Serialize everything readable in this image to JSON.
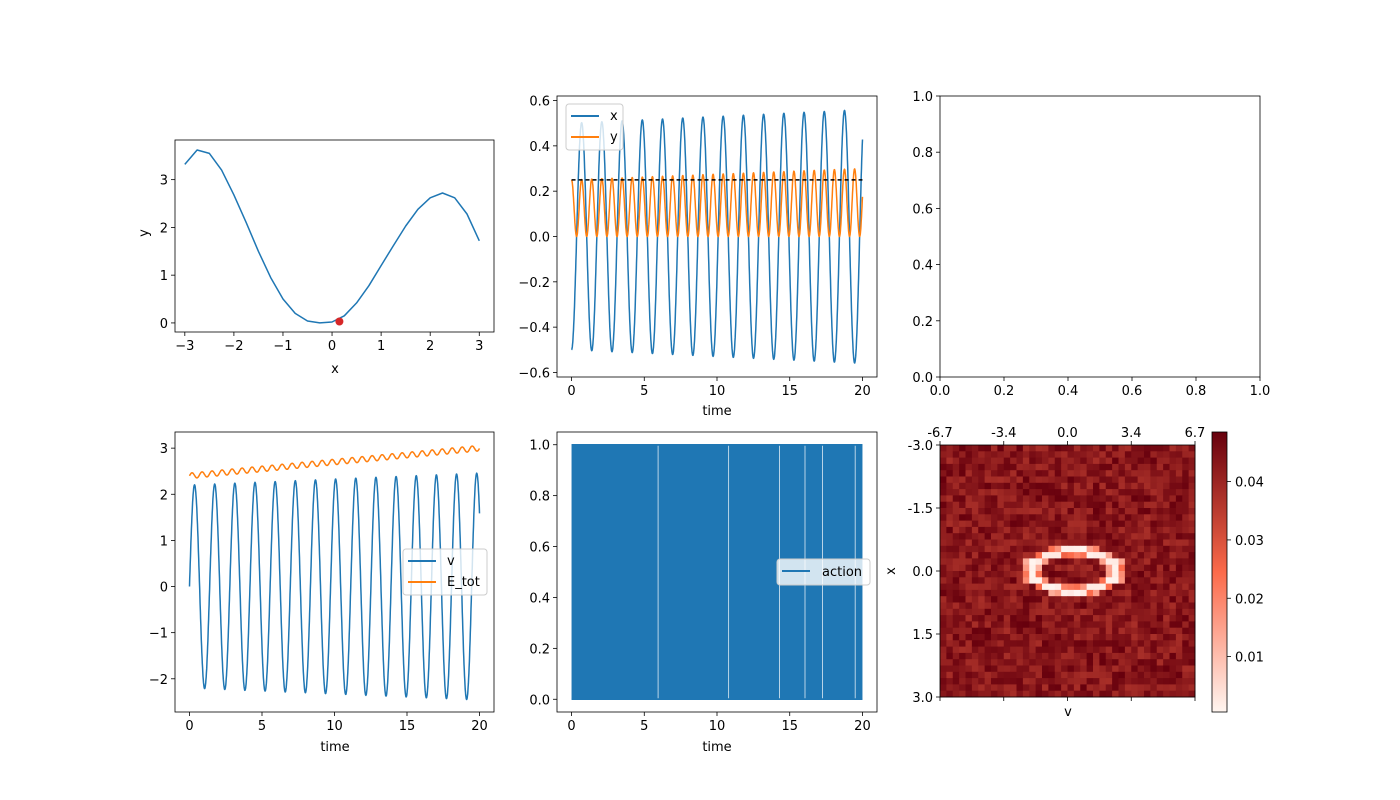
{
  "colors": {
    "c0": "#1f77b4",
    "c1": "#ff7f0e",
    "marker": "#d62728",
    "hline": "#000000",
    "cmap_low": "#fff5f0",
    "cmap_mid": "#fb6a4a",
    "cmap_high": "#67000d"
  },
  "chart_data": [
    {
      "id": "potential",
      "type": "line",
      "xlabel": "x",
      "ylabel": "y",
      "xlim": [
        -3.2,
        3.3
      ],
      "ylim": [
        -0.19,
        3.83
      ],
      "xticks": [
        -3,
        -2,
        -1,
        0,
        1,
        2,
        3
      ],
      "xtick_labels": [
        "−3",
        "−2",
        "−1",
        "0",
        "1",
        "2",
        "3"
      ],
      "yticks": [
        0,
        1,
        2,
        3
      ],
      "ytick_labels": [
        "0",
        "1",
        "2",
        "3"
      ],
      "series": [
        {
          "x": [
            -3.0,
            -2.75,
            -2.5,
            -2.25,
            -2.0,
            -1.75,
            -1.5,
            -1.25,
            -1.0,
            -0.75,
            -0.5,
            -0.25,
            0.0,
            0.25,
            0.5,
            0.75,
            1.0,
            1.25,
            1.5,
            1.75,
            2.0,
            2.25,
            2.5,
            2.75,
            3.0
          ],
          "y": [
            3.32,
            3.62,
            3.55,
            3.2,
            2.68,
            2.1,
            1.5,
            0.95,
            0.5,
            0.2,
            0.04,
            0.0,
            0.02,
            0.15,
            0.42,
            0.78,
            1.2,
            1.62,
            2.03,
            2.38,
            2.62,
            2.72,
            2.62,
            2.28,
            1.72
          ],
          "color_key": "c0"
        }
      ],
      "markers": [
        {
          "x": 0.15,
          "y": 0.03,
          "color_key": "marker"
        }
      ]
    },
    {
      "id": "xy_time",
      "type": "line",
      "xlabel": "time",
      "xlim": [
        -1.0,
        21.0
      ],
      "ylim": [
        -0.62,
        0.62
      ],
      "xticks": [
        0,
        5,
        10,
        15,
        20
      ],
      "xtick_labels": [
        "0",
        "5",
        "10",
        "15",
        "20"
      ],
      "yticks": [
        -0.6,
        -0.4,
        -0.2,
        0.0,
        0.2,
        0.4,
        0.6
      ],
      "ytick_labels": [
        "−0.6",
        "−0.4",
        "−0.2",
        "0.0",
        "0.2",
        "0.4",
        "0.6"
      ],
      "hline": 0.25,
      "legend": {
        "position": "upper-left"
      },
      "series": [
        {
          "name": "x",
          "kind": "cos",
          "amp0": 0.5,
          "amp1": 0.56,
          "period": 1.39,
          "t0": 0,
          "t1": 20,
          "color_key": "c0"
        },
        {
          "name": "y",
          "kind": "sq",
          "amp0": 0.25,
          "amp1": 0.3,
          "period": 1.39,
          "t0": 0,
          "t1": 20,
          "color_key": "c1"
        }
      ]
    },
    {
      "id": "empty",
      "type": "line",
      "xlim": [
        0,
        1
      ],
      "ylim": [
        0,
        1
      ],
      "xticks": [
        0,
        0.2,
        0.4,
        0.6,
        0.8,
        1.0
      ],
      "xtick_labels": [
        "0.0",
        "0.2",
        "0.4",
        "0.6",
        "0.8",
        "1.0"
      ],
      "yticks": [
        0,
        0.2,
        0.4,
        0.6,
        0.8,
        1.0
      ],
      "ytick_labels": [
        "0.0",
        "0.2",
        "0.4",
        "0.6",
        "0.8",
        "1.0"
      ],
      "series": []
    },
    {
      "id": "v_energy",
      "type": "line",
      "xlabel": "time",
      "xlim": [
        -1.0,
        21.0
      ],
      "ylim": [
        -2.72,
        3.35
      ],
      "xticks": [
        0,
        5,
        10,
        15,
        20
      ],
      "xtick_labels": [
        "0",
        "5",
        "10",
        "15",
        "20"
      ],
      "yticks": [
        -2,
        -1,
        0,
        1,
        2,
        3
      ],
      "ytick_labels": [
        "−2",
        "−1",
        "0",
        "1",
        "2",
        "3"
      ],
      "legend": {
        "position": "center-right"
      },
      "series": [
        {
          "name": "v",
          "kind": "sin",
          "amp0": 2.2,
          "amp1": 2.46,
          "period": 1.39,
          "t0": 0,
          "t1": 20,
          "color_key": "c0"
        },
        {
          "name": "E_tot",
          "kind": "energy",
          "base0": 2.4,
          "base1": 3.0,
          "ripple": 0.06,
          "period": 0.69,
          "t0": 0,
          "t1": 20,
          "color_key": "c1"
        }
      ]
    },
    {
      "id": "action",
      "type": "area",
      "xlabel": "time",
      "xlim": [
        -1.0,
        21.0
      ],
      "ylim": [
        -0.05,
        1.05
      ],
      "xticks": [
        0,
        5,
        10,
        15,
        20
      ],
      "xtick_labels": [
        "0",
        "5",
        "10",
        "15",
        "20"
      ],
      "yticks": [
        0.0,
        0.2,
        0.4,
        0.6,
        0.8,
        1.0
      ],
      "ytick_labels": [
        "0.0",
        "0.2",
        "0.4",
        "0.6",
        "0.8",
        "1.0"
      ],
      "legend": {
        "position": "center-right"
      },
      "series": [
        {
          "name": "action",
          "min": 0,
          "max": 1,
          "t0": 0,
          "t1": 20,
          "gaps": [
            5.95,
            10.8,
            14.3,
            16.05,
            17.25,
            19.5
          ],
          "color_key": "c0"
        }
      ]
    },
    {
      "id": "heatmap",
      "type": "heatmap",
      "xlabel": "v",
      "ylabel": "x",
      "xtick_labels": [
        "-6.7",
        "-3.4",
        "0.0",
        "3.4",
        "6.7"
      ],
      "ytick_labels": [
        "-3.0",
        "-1.5",
        "0.0",
        "1.5",
        "3.0"
      ],
      "grid_size": 40,
      "ring": {
        "center_col": 20.5,
        "center_row": 19.5,
        "radius_cols": 6.5,
        "radius_rows": 3.2,
        "min_value": 0.0005
      },
      "background": {
        "low": 0.038,
        "high": 0.0485
      },
      "colorbar": {
        "min": 0.0005,
        "max": 0.0485,
        "ticks": [
          0.01,
          0.02,
          0.03,
          0.04
        ],
        "tick_labels": [
          "0.01",
          "0.02",
          "0.03",
          "0.04"
        ]
      }
    }
  ]
}
